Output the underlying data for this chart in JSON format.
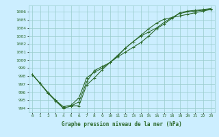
{
  "title": "Graphe pression niveau de la mer (hPa)",
  "xlabel": "Graphe pression niveau de la mer (hPa)",
  "xlim": [
    -0.5,
    23.5
  ],
  "ylim": [
    993.5,
    1006.8
  ],
  "yticks": [
    994,
    995,
    996,
    997,
    998,
    999,
    1000,
    1001,
    1002,
    1003,
    1004,
    1005,
    1006
  ],
  "xticks": [
    0,
    1,
    2,
    3,
    4,
    5,
    6,
    7,
    8,
    9,
    10,
    11,
    12,
    13,
    14,
    15,
    16,
    17,
    18,
    19,
    20,
    21,
    22,
    23
  ],
  "background_color": "#cceeff",
  "grid_color": "#99cccc",
  "line_color": "#2d6a2d",
  "series": [
    [
      998.2,
      997.1,
      995.9,
      995.0,
      994.0,
      994.3,
      994.3,
      996.9,
      997.8,
      998.8,
      999.7,
      1000.4,
      1001.0,
      1001.6,
      1002.2,
      1003.0,
      1003.9,
      1004.5,
      1005.2,
      1005.9,
      1006.1,
      1006.2,
      1006.3,
      1006.4
    ],
    [
      998.2,
      997.1,
      995.9,
      994.9,
      994.0,
      994.3,
      994.8,
      997.3,
      998.7,
      999.2,
      999.7,
      1000.5,
      1001.5,
      1002.3,
      1003.1,
      1003.9,
      1004.6,
      1005.1,
      1005.3,
      1005.5,
      1005.7,
      1005.9,
      1006.1,
      1006.3
    ],
    [
      998.2,
      997.1,
      996.0,
      995.0,
      994.2,
      994.4,
      995.3,
      997.8,
      998.5,
      999.0,
      999.7,
      1000.6,
      1001.5,
      1002.3,
      1003.0,
      1003.5,
      1004.0,
      1004.7,
      1005.3,
      1005.8,
      1006.0,
      1006.1,
      1006.2,
      1006.4
    ]
  ],
  "marker": "+",
  "markersize": 3,
  "linewidth": 0.8
}
